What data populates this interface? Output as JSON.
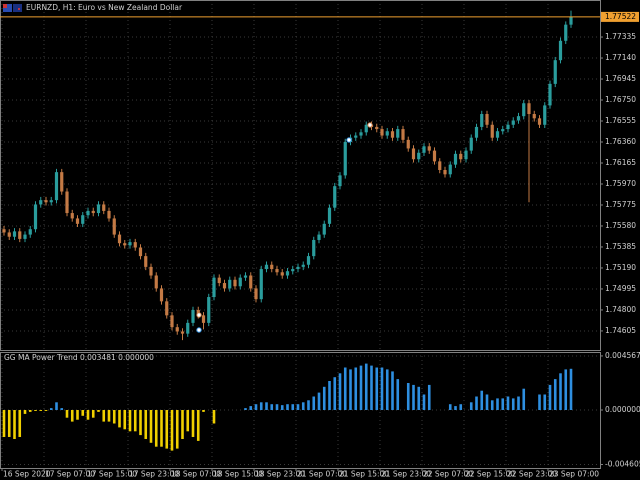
{
  "chart_data": [
    {
      "type": "candlestick",
      "title": "EURNZD, H1: Euro vs New Zealand Dollar",
      "up_color": "#2a9d9d",
      "down_color": "#c47a45",
      "current_price": 1.77522,
      "current_price_color": "#f0a030",
      "grid": true,
      "ylim": [
        1.74428,
        1.77679
      ],
      "yticks": [
        1.77335,
        {
          "value": 1.7714,
          "label": "1.77140"
        },
        1.76945,
        {
          "value": 1.7675,
          "label": "1.76750"
        },
        1.76555,
        {
          "value": 1.7636,
          "label": "1.76360"
        },
        1.76165,
        {
          "value": 1.7597,
          "label": "1.75970"
        },
        1.75775,
        {
          "value": 1.7558,
          "label": "1.75580"
        },
        1.75385,
        {
          "value": 1.7519,
          "label": "1.75190"
        },
        1.74995,
        {
          "value": 1.748,
          "label": "1.74800"
        },
        1.74605
      ],
      "open": [
        1.7555,
        1.7552,
        1.7548,
        1.7553,
        1.7546,
        1.755,
        1.7555,
        1.7578,
        1.7582,
        1.758,
        1.7582,
        1.7608,
        1.759,
        1.757,
        1.7565,
        1.756,
        1.7568,
        1.7572,
        1.757,
        1.7578,
        1.7572,
        1.7565,
        1.755,
        1.7542,
        1.754,
        1.7543,
        1.7538,
        1.753,
        1.752,
        1.7512,
        1.75,
        1.7488,
        1.7475,
        1.7464,
        1.746,
        1.7458,
        1.7468,
        1.748,
        1.7475,
        1.7468,
        1.7492,
        1.751,
        1.7505,
        1.75,
        1.7508,
        1.7502,
        1.751,
        1.7512,
        1.75,
        1.749,
        1.7518,
        1.7522,
        1.7518,
        1.7515,
        1.7512,
        1.7516,
        1.7518,
        1.752,
        1.7522,
        1.753,
        1.7545,
        1.755,
        1.756,
        1.7575,
        1.7595,
        1.7605,
        1.7636,
        1.764,
        1.7642,
        1.7645,
        1.7652,
        1.765,
        1.7648,
        1.7642,
        1.7646,
        1.764,
        1.7648,
        1.7638,
        1.763,
        1.762,
        1.7626,
        1.7632,
        1.7628,
        1.7618,
        1.761,
        1.7606,
        1.7615,
        1.7625,
        1.762,
        1.7628,
        1.764,
        1.765,
        1.7662,
        1.7652,
        1.764,
        1.7646,
        1.7648,
        1.7652,
        1.7656,
        1.766,
        1.7672,
        1.7662,
        1.7658,
        1.7652,
        1.767,
        1.769,
        1.7712,
        1.773,
        1.7745
      ],
      "high": [
        1.7558,
        1.7555,
        1.7556,
        1.7556,
        1.7553,
        1.7558,
        1.7581,
        1.7585,
        1.7585,
        1.7585,
        1.7611,
        1.7611,
        1.7593,
        1.7573,
        1.7568,
        1.7571,
        1.7575,
        1.7575,
        1.7581,
        1.7581,
        1.7575,
        1.7568,
        1.7553,
        1.7545,
        1.7546,
        1.7546,
        1.7541,
        1.7533,
        1.7523,
        1.7515,
        1.7503,
        1.7491,
        1.7478,
        1.7467,
        1.7463,
        1.7471,
        1.7483,
        1.7483,
        1.7478,
        1.7495,
        1.7513,
        1.7513,
        1.7508,
        1.7511,
        1.7511,
        1.7513,
        1.7515,
        1.7515,
        1.7503,
        1.7521,
        1.7525,
        1.7525,
        1.7521,
        1.7518,
        1.7519,
        1.7521,
        1.7523,
        1.7525,
        1.7533,
        1.7548,
        1.7553,
        1.7563,
        1.7578,
        1.7598,
        1.7608,
        1.7639,
        1.7643,
        1.7645,
        1.7648,
        1.7655,
        1.7655,
        1.7653,
        1.7651,
        1.7649,
        1.7649,
        1.7651,
        1.7651,
        1.7641,
        1.7633,
        1.7629,
        1.7635,
        1.7635,
        1.7631,
        1.7621,
        1.7613,
        1.7618,
        1.7628,
        1.7628,
        1.7631,
        1.7643,
        1.7653,
        1.7665,
        1.7665,
        1.7655,
        1.7649,
        1.7651,
        1.7655,
        1.7659,
        1.7663,
        1.7675,
        1.7675,
        1.7665,
        1.7661,
        1.7673,
        1.7693,
        1.7715,
        1.7733,
        1.7748,
        1.7758
      ],
      "low": [
        1.7549,
        1.7545,
        1.7545,
        1.7543,
        1.7543,
        1.7547,
        1.7552,
        1.7575,
        1.7577,
        1.7577,
        1.7579,
        1.7587,
        1.7567,
        1.7562,
        1.7557,
        1.7557,
        1.7565,
        1.7567,
        1.7567,
        1.7569,
        1.7562,
        1.7547,
        1.7539,
        1.7537,
        1.7537,
        1.7535,
        1.7527,
        1.7517,
        1.7509,
        1.7497,
        1.7485,
        1.7472,
        1.7461,
        1.7457,
        1.7452,
        1.7455,
        1.7465,
        1.7472,
        1.7462,
        1.7465,
        1.7489,
        1.7502,
        1.7497,
        1.7497,
        1.7499,
        1.7499,
        1.7507,
        1.7497,
        1.7487,
        1.7487,
        1.7515,
        1.7515,
        1.7512,
        1.7509,
        1.7509,
        1.7513,
        1.7515,
        1.7517,
        1.7519,
        1.7527,
        1.7542,
        1.7547,
        1.7557,
        1.7572,
        1.7592,
        1.7602,
        1.7633,
        1.7637,
        1.7639,
        1.7642,
        1.7647,
        1.7645,
        1.7639,
        1.7639,
        1.7637,
        1.7637,
        1.7635,
        1.7627,
        1.7617,
        1.7617,
        1.7623,
        1.7625,
        1.7615,
        1.7607,
        1.7603,
        1.7603,
        1.7612,
        1.7617,
        1.7617,
        1.7625,
        1.7637,
        1.7647,
        1.7649,
        1.7637,
        1.7637,
        1.7643,
        1.7645,
        1.7649,
        1.7653,
        1.7657,
        1.758,
        1.7655,
        1.7649,
        1.7649,
        1.7667,
        1.7687,
        1.7709,
        1.7727,
        1.7742
      ],
      "close": [
        1.7552,
        1.7548,
        1.7553,
        1.7546,
        1.755,
        1.7555,
        1.7578,
        1.7582,
        1.758,
        1.7582,
        1.7608,
        1.759,
        1.757,
        1.7565,
        1.756,
        1.7568,
        1.7572,
        1.757,
        1.7578,
        1.7572,
        1.7565,
        1.755,
        1.7542,
        1.754,
        1.7543,
        1.7538,
        1.753,
        1.752,
        1.7512,
        1.75,
        1.7488,
        1.7475,
        1.7464,
        1.746,
        1.7458,
        1.7468,
        1.748,
        1.7475,
        1.7468,
        1.7492,
        1.751,
        1.7505,
        1.75,
        1.7508,
        1.7502,
        1.751,
        1.7512,
        1.75,
        1.749,
        1.7518,
        1.7522,
        1.7518,
        1.7515,
        1.7512,
        1.7516,
        1.7518,
        1.752,
        1.7522,
        1.753,
        1.7545,
        1.755,
        1.756,
        1.7575,
        1.7595,
        1.7605,
        1.7636,
        1.764,
        1.7642,
        1.7645,
        1.7652,
        1.765,
        1.7648,
        1.7642,
        1.7646,
        1.764,
        1.7648,
        1.7638,
        1.763,
        1.762,
        1.7626,
        1.7632,
        1.7628,
        1.7618,
        1.761,
        1.7606,
        1.7615,
        1.7625,
        1.762,
        1.7628,
        1.764,
        1.765,
        1.7662,
        1.7652,
        1.764,
        1.7646,
        1.7648,
        1.7652,
        1.7656,
        1.766,
        1.7672,
        1.7662,
        1.7658,
        1.7652,
        1.767,
        1.769,
        1.7712,
        1.773,
        1.7745,
        1.77522
      ]
    },
    {
      "type": "bar",
      "title": "GG MA Power Trend 0.003481 0.000000",
      "positive_color": "#2e8fe0",
      "negative_color": "#f0d000",
      "grid": true,
      "ylim": [
        -0.0049,
        0.0049
      ],
      "yticks": [
        0.004567,
        {
          "value": 0,
          "label": "0.000000"
        },
        -0.004605
      ],
      "xticks": [
        {
          "value": 0,
          "label": "16 Sep 2020"
        },
        {
          "value": 8,
          "label": "17 Sep 07:00"
        },
        {
          "value": 16,
          "label": "17 Sep 15:00"
        },
        {
          "value": 24,
          "label": "17 Sep 23:00"
        },
        {
          "value": 32,
          "label": "18 Sep 07:00"
        },
        {
          "value": 40,
          "label": "18 Sep 15:00"
        },
        {
          "value": 48,
          "label": "18 Sep 23:00"
        },
        {
          "value": 56,
          "label": "21 Sep 07:00"
        },
        {
          "value": 64,
          "label": "21 Sep 15:00"
        },
        {
          "value": 72,
          "label": "21 Sep 23:00"
        },
        {
          "value": 80,
          "label": "22 Sep 07:00"
        },
        {
          "value": 88,
          "label": "22 Sep 15:00"
        },
        {
          "value": 96,
          "label": "22 Sep 23:00"
        },
        {
          "value": 104,
          "label": "23 Sep 07:00"
        }
      ],
      "values": [
        -0.00228,
        -0.00228,
        -0.00245,
        -0.00228,
        -0.00033,
        -0.00016,
        -8e-05,
        -8e-05,
        -8e-05,
        0.00016,
        0.00065,
        0.00016,
        -0.00065,
        -0.00098,
        -0.00082,
        -0.00049,
        -0.00082,
        -0.00065,
        -0.00016,
        -0.00098,
        -0.00098,
        -0.00114,
        -0.00147,
        -0.00163,
        -0.0018,
        -0.0018,
        -0.00212,
        -0.00245,
        -0.00277,
        -0.0031,
        -0.0031,
        -0.00326,
        -0.00343,
        -0.00326,
        -0.00245,
        -0.0018,
        -0.00228,
        -0.00261,
        -0.00016,
        0,
        -0.00114,
        0,
        0,
        0,
        0,
        0,
        0.00016,
        0.00033,
        0.00049,
        0.00065,
        0.00065,
        0.00049,
        0.00049,
        0.00041,
        0.00049,
        0.00049,
        0.00049,
        0.00065,
        0.00082,
        0.00114,
        0.00147,
        0.00196,
        0.00245,
        0.00277,
        0.0031,
        0.00359,
        0.00343,
        0.00359,
        0.00375,
        0.00392,
        0.00375,
        0.00359,
        0.00359,
        0.00343,
        0.00326,
        0.00261,
        0,
        0.00228,
        0.00212,
        0.00196,
        0.00131,
        0.00212,
        0,
        0,
        0,
        0.00049,
        0.00033,
        0.00049,
        0,
        0.00065,
        0.00114,
        0.00163,
        0.00131,
        0.00082,
        0.00098,
        0.00098,
        0.00114,
        0.00098,
        0.00114,
        0.0018,
        0,
        0,
        0.00131,
        0.00131,
        0.00212,
        0.00261,
        0.0031,
        0.00343,
        0.003481
      ]
    }
  ]
}
